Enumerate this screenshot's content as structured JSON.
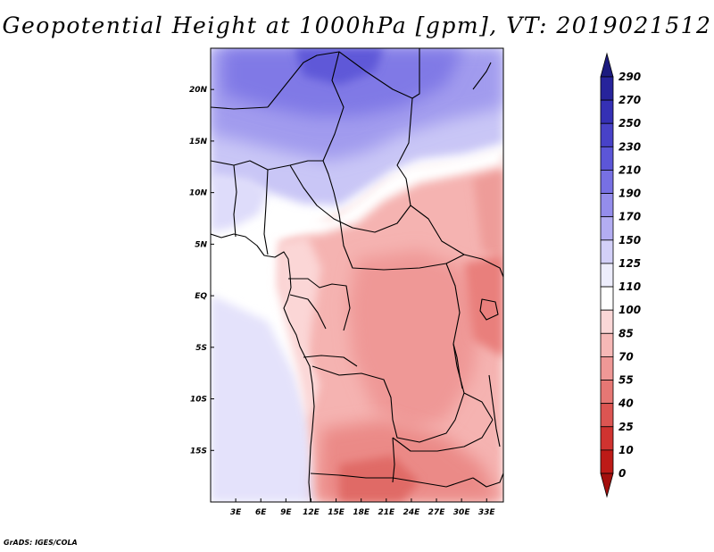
{
  "title": "Geopotential Height at 1000hPa [gpm], VT: 2019021512",
  "footer": "GrADS: IGES/COLA",
  "map": {
    "lon_range": [
      0,
      35
    ],
    "lat_range": [
      -20,
      24
    ],
    "x_ticks": [
      "3E",
      "6E",
      "9E",
      "12E",
      "15E",
      "18E",
      "21E",
      "24E",
      "27E",
      "30E",
      "33E"
    ],
    "x_tick_values": [
      3,
      6,
      9,
      12,
      15,
      18,
      21,
      24,
      27,
      30,
      33
    ],
    "y_ticks": [
      "20N",
      "15N",
      "10N",
      "5N",
      "EQ",
      "5S",
      "10S",
      "15S"
    ],
    "y_tick_values": [
      20,
      15,
      10,
      5,
      0,
      -5,
      -10,
      -15
    ]
  },
  "colorbar": {
    "labels": [
      "290",
      "270",
      "250",
      "230",
      "210",
      "190",
      "170",
      "150",
      "125",
      "110",
      "100",
      "85",
      "70",
      "55",
      "40",
      "25",
      "10",
      "0"
    ],
    "colors_top_to_bottom": [
      "#1c1b7f",
      "#27239b",
      "#3530b5",
      "#4842c8",
      "#5c56d8",
      "#7770e3",
      "#948deb",
      "#b3adf2",
      "#d3d0f8",
      "#ededfc",
      "#ffffff",
      "#fbd7d7",
      "#f6b8b6",
      "#ef9896",
      "#e67774",
      "#dc5552",
      "#d03330",
      "#bd1a17",
      "#a30f0d"
    ]
  }
}
